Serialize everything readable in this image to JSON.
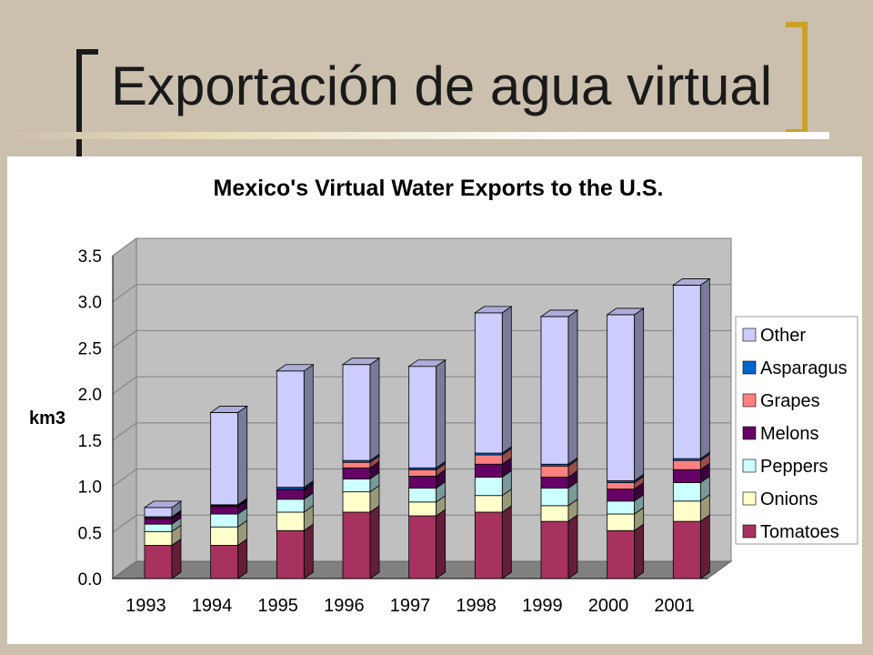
{
  "slide": {
    "title": "Exportación de agua virtual"
  },
  "chart_data": {
    "type": "bar",
    "stacked": true,
    "three_d": true,
    "title": "Mexico's Virtual Water Exports to the U.S.",
    "xlabel": "",
    "ylabel": "km3",
    "ylim": [
      0,
      3.5
    ],
    "yticks": [
      "0.0",
      "0.5",
      "1.0",
      "1.5",
      "2.0",
      "2.5",
      "3.0",
      "3.5"
    ],
    "grid": true,
    "legend_position": "right",
    "categories": [
      "1993",
      "1994",
      "1995",
      "1996",
      "1997",
      "1998",
      "1999",
      "2000",
      "2001"
    ],
    "series": [
      {
        "name": "Tomatoes",
        "color": "#a8325f",
        "values": [
          0.36,
          0.36,
          0.52,
          0.72,
          0.68,
          0.72,
          0.62,
          0.52,
          0.62
        ]
      },
      {
        "name": "Onions",
        "color": "#ffffcc",
        "values": [
          0.15,
          0.2,
          0.2,
          0.22,
          0.15,
          0.18,
          0.17,
          0.18,
          0.22
        ]
      },
      {
        "name": "Peppers",
        "color": "#ccffff",
        "values": [
          0.08,
          0.14,
          0.14,
          0.14,
          0.15,
          0.2,
          0.19,
          0.14,
          0.2
        ]
      },
      {
        "name": "Melons",
        "color": "#660066",
        "values": [
          0.06,
          0.08,
          0.1,
          0.12,
          0.13,
          0.14,
          0.12,
          0.13,
          0.14
        ]
      },
      {
        "name": "Grapes",
        "color": "#ff8080",
        "values": [
          0.01,
          0.01,
          0.01,
          0.06,
          0.07,
          0.1,
          0.12,
          0.07,
          0.1
        ]
      },
      {
        "name": "Asparagus",
        "color": "#0066cc",
        "values": [
          0.01,
          0.01,
          0.02,
          0.02,
          0.02,
          0.02,
          0.02,
          0.02,
          0.02
        ]
      },
      {
        "name": "Other",
        "color": "#ccccff",
        "values": [
          0.1,
          1.0,
          1.26,
          1.04,
          1.1,
          1.52,
          1.6,
          1.8,
          1.88
        ]
      }
    ],
    "colors": {
      "plot_back": "#c0c0c0",
      "plot_side": "#b3b3b3",
      "floor": "#808080",
      "gridline": "#808080"
    }
  }
}
